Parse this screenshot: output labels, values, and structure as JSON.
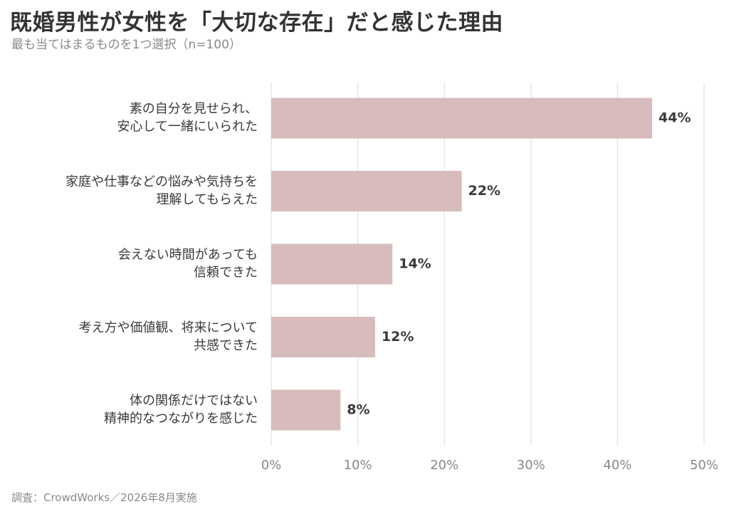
{
  "header": {
    "title": "既婚男性が女性を「大切な存在」だと感じた理由",
    "subtitle": "最も当てはまるものを1つ選択（n=100）"
  },
  "footer": {
    "source": "調査：CrowdWorks／2026年8月実施"
  },
  "chart_data": {
    "type": "bar",
    "orientation": "horizontal",
    "title": "既婚男性が女性を「大切な存在」だと感じた理由",
    "subtitle": "最も当てはまるものを1つ選択（n=100）",
    "categories": [
      [
        "素の自分を見せられ、",
        "安心して一緒にいられた"
      ],
      [
        "家庭や仕事などの悩みや気持ちを",
        "理解してもらえた"
      ],
      [
        "会えない時間があっても",
        "信頼できた"
      ],
      [
        "考え方や価値観、将来について",
        "共感できた"
      ],
      [
        "体の関係だけではない",
        "精神的なつながりを感じた"
      ]
    ],
    "values": [
      44,
      22,
      14,
      12,
      8
    ],
    "value_labels": [
      "44%",
      "22%",
      "14%",
      "12%",
      "8%"
    ],
    "xlim": [
      0,
      50
    ],
    "x_ticks": [
      0,
      10,
      20,
      30,
      40,
      50
    ],
    "x_tick_labels": [
      "0%",
      "10%",
      "20%",
      "30%",
      "40%",
      "50%"
    ],
    "grid": true,
    "bar_color": "#d7bbbd",
    "grid_color": "#e6e6e6"
  }
}
